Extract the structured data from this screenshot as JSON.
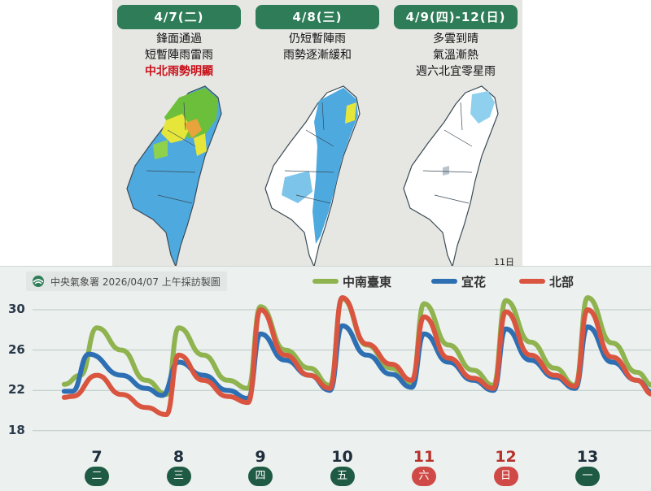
{
  "forecast": {
    "panels": [
      {
        "date": "4/7(二)",
        "lines": [
          "鋒面通過",
          "短暫陣雨雷雨"
        ],
        "highlight": "中北雨勢明顯"
      },
      {
        "date": "4/8(三)",
        "lines": [
          "仍短暫陣雨",
          "雨勢逐漸緩和"
        ],
        "highlight": ""
      },
      {
        "date": "4/9(四)-12(日)",
        "lines": [
          "多雲到晴",
          "氣溫漸熱",
          "週六北宜零星雨"
        ],
        "highlight": "",
        "map_note": "11日"
      }
    ]
  },
  "chart": {
    "source_label": "中央氣象署 2026/04/07 上午採訪製圖",
    "colors": {
      "central_south_east": "#8fb34f",
      "yilan_hualien": "#2e6fb3",
      "north": "#d9553f"
    },
    "chart_data": {
      "type": "line",
      "ylim": [
        18,
        31.5
      ],
      "yticks": [
        18,
        22,
        26,
        30
      ],
      "x_days": [
        7,
        8,
        9,
        10,
        11,
        12,
        13
      ],
      "weekday_labels": [
        "二",
        "三",
        "四",
        "五",
        "六",
        "日",
        "一"
      ],
      "weekend_days": [
        11,
        12
      ],
      "series": [
        {
          "name": "中南臺東",
          "color": "#8fb34f",
          "points": [
            [
              6.6,
              22.6
            ],
            [
              6.8,
              23.5
            ],
            [
              7.0,
              28.2
            ],
            [
              7.3,
              26.0
            ],
            [
              7.6,
              23.0
            ],
            [
              7.85,
              21.6
            ],
            [
              8.0,
              28.2
            ],
            [
              8.3,
              25.5
            ],
            [
              8.6,
              23.0
            ],
            [
              8.85,
              22.2
            ],
            [
              9.0,
              30.3
            ],
            [
              9.3,
              26.0
            ],
            [
              9.6,
              24.2
            ],
            [
              9.85,
              22.5
            ],
            [
              10.0,
              31.1
            ],
            [
              10.3,
              26.5
            ],
            [
              10.6,
              24.2
            ],
            [
              10.85,
              22.6
            ],
            [
              11.0,
              30.6
            ],
            [
              11.3,
              26.5
            ],
            [
              11.6,
              24.0
            ],
            [
              11.85,
              22.5
            ],
            [
              12.0,
              30.9
            ],
            [
              12.3,
              26.8
            ],
            [
              12.6,
              24.2
            ],
            [
              12.85,
              22.5
            ],
            [
              13.0,
              31.2
            ],
            [
              13.3,
              26.7
            ],
            [
              13.6,
              23.8
            ],
            [
              13.8,
              22.5
            ]
          ]
        },
        {
          "name": "宜花",
          "color": "#2e6fb3",
          "points": [
            [
              6.6,
              21.9
            ],
            [
              6.7,
              21.9
            ],
            [
              6.9,
              25.6
            ],
            [
              7.3,
              23.5
            ],
            [
              7.6,
              22.2
            ],
            [
              7.8,
              21.5
            ],
            [
              8.0,
              24.8
            ],
            [
              8.3,
              23.5
            ],
            [
              8.6,
              22.0
            ],
            [
              8.85,
              21.2
            ],
            [
              9.0,
              27.6
            ],
            [
              9.3,
              25.0
            ],
            [
              9.6,
              23.5
            ],
            [
              9.85,
              22.0
            ],
            [
              10.0,
              28.4
            ],
            [
              10.3,
              25.5
            ],
            [
              10.6,
              23.6
            ],
            [
              10.85,
              22.3
            ],
            [
              11.0,
              27.6
            ],
            [
              11.3,
              24.8
            ],
            [
              11.6,
              23.0
            ],
            [
              11.85,
              22.0
            ],
            [
              12.0,
              28.1
            ],
            [
              12.3,
              25.0
            ],
            [
              12.6,
              23.3
            ],
            [
              12.85,
              22.2
            ],
            [
              13.0,
              28.3
            ],
            [
              13.3,
              24.8
            ],
            [
              13.6,
              23.0
            ],
            [
              13.8,
              21.8
            ]
          ]
        },
        {
          "name": "北部",
          "color": "#d9553f",
          "points": [
            [
              6.6,
              21.3
            ],
            [
              6.7,
              21.4
            ],
            [
              7.0,
              23.5
            ],
            [
              7.3,
              21.6
            ],
            [
              7.6,
              20.3
            ],
            [
              7.85,
              19.6
            ],
            [
              8.0,
              25.5
            ],
            [
              8.3,
              23.0
            ],
            [
              8.6,
              21.4
            ],
            [
              8.85,
              20.8
            ],
            [
              9.0,
              30.0
            ],
            [
              9.3,
              25.5
            ],
            [
              9.6,
              23.5
            ],
            [
              9.85,
              22.2
            ],
            [
              10.0,
              31.2
            ],
            [
              10.3,
              26.6
            ],
            [
              10.6,
              24.6
            ],
            [
              10.85,
              23.0
            ],
            [
              11.0,
              29.3
            ],
            [
              11.3,
              25.2
            ],
            [
              11.6,
              23.2
            ],
            [
              11.85,
              22.2
            ],
            [
              12.0,
              29.8
            ],
            [
              12.3,
              25.5
            ],
            [
              12.6,
              23.5
            ],
            [
              12.85,
              22.4
            ],
            [
              13.0,
              30.0
            ],
            [
              13.3,
              25.3
            ],
            [
              13.6,
              23.0
            ],
            [
              13.8,
              21.6
            ]
          ]
        }
      ]
    }
  }
}
